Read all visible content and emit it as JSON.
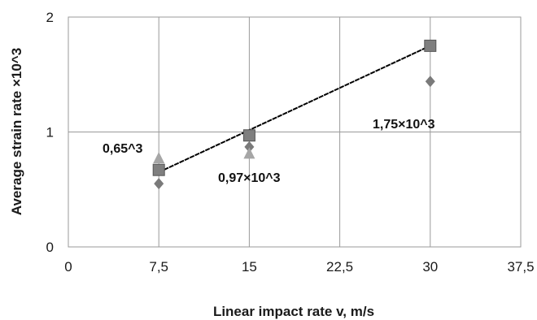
{
  "chart_data": {
    "type": "scatter",
    "xlabel": "Linear impact rate v, m/s",
    "ylabel": "Average strain rate ×10^3",
    "xlim": [
      0,
      37.5
    ],
    "ylim": [
      0,
      2
    ],
    "x_ticks": [
      "0",
      "7,5",
      "15",
      "22,5",
      "30",
      "37,5"
    ],
    "y_ticks": [
      "0",
      "1",
      "2"
    ],
    "grid": true,
    "legend": "none",
    "series": [
      {
        "marker": "diamond",
        "color": "#7a7a7a",
        "points": [
          {
            "x": 7.5,
            "y": 0.55
          },
          {
            "x": 15,
            "y": 0.87
          },
          {
            "x": 30,
            "y": 1.44
          }
        ]
      },
      {
        "marker": "triangle",
        "color": "#a6a6a6",
        "points": [
          {
            "x": 7.5,
            "y": 0.77
          },
          {
            "x": 15,
            "y": 0.81
          }
        ]
      },
      {
        "marker": "square",
        "color": "#7f7f7f",
        "points": [
          {
            "x": 7.5,
            "y": 0.67
          },
          {
            "x": 15,
            "y": 0.97
          },
          {
            "x": 30,
            "y": 1.75
          }
        ]
      }
    ],
    "trendline": {
      "from": {
        "x": 7.5,
        "y": 0.65
      },
      "to": {
        "x": 30,
        "y": 1.75
      },
      "color": "#000000"
    },
    "annotations": [
      {
        "text": "0,65^3"
      },
      {
        "text": "0,97×10^3"
      },
      {
        "text": "1,75×10^3"
      }
    ]
  }
}
